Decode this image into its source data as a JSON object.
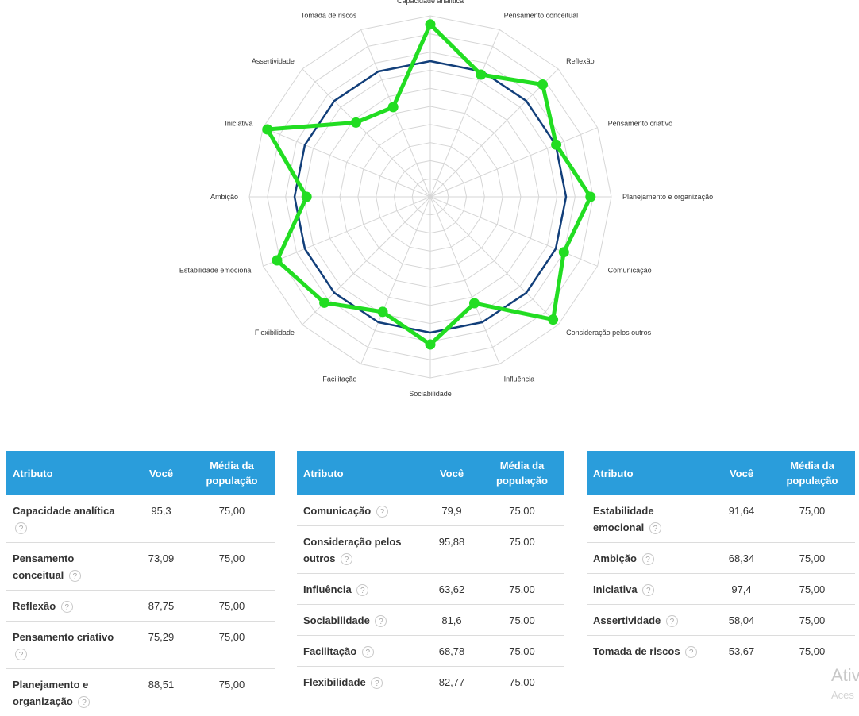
{
  "chart_data": {
    "type": "radar",
    "categories": [
      "Capacidade analítica",
      "Pensamento conceitual",
      "Reflexão",
      "Pensamento criativo",
      "Planejamento e organização",
      "Comunicação",
      "Consideração pelos outros",
      "Influência",
      "Sociabilidade",
      "Facilitação",
      "Flexibilidade",
      "Estabilidade emocional",
      "Ambição",
      "Iniciativa",
      "Assertividade",
      "Tomada de riscos"
    ],
    "series": [
      {
        "name": "Você",
        "color": "#22dd22",
        "values": [
          95.3,
          73.09,
          87.75,
          75.29,
          88.51,
          79.9,
          95.88,
          63.62,
          81.6,
          68.78,
          82.77,
          91.64,
          68.34,
          97.4,
          58.04,
          53.67
        ]
      },
      {
        "name": "Média da população",
        "color": "#123f7a",
        "values": [
          75,
          75,
          75,
          75,
          75,
          75,
          75,
          75,
          75,
          75,
          75,
          75,
          75,
          75,
          75,
          75
        ]
      }
    ],
    "rlim": [
      0,
      100
    ],
    "grid": true
  },
  "tables": [
    {
      "headers": {
        "attr": "Atributo",
        "you": "Você",
        "avg": "Média da população"
      },
      "rows": [
        {
          "attr": "Capacidade analítica",
          "you": "95,3",
          "avg": "75,00"
        },
        {
          "attr": "Pensamento conceitual",
          "you": "73,09",
          "avg": "75,00"
        },
        {
          "attr": "Reflexão",
          "you": "87,75",
          "avg": "75,00"
        },
        {
          "attr": "Pensamento criativo",
          "you": "75,29",
          "avg": "75,00"
        },
        {
          "attr": "Planejamento e organização",
          "you": "88,51",
          "avg": "75,00"
        }
      ]
    },
    {
      "headers": {
        "attr": "Atributo",
        "you": "Você",
        "avg": "Média da população"
      },
      "rows": [
        {
          "attr": "Comunicação",
          "you": "79,9",
          "avg": "75,00"
        },
        {
          "attr": "Consideração pelos outros",
          "you": "95,88",
          "avg": "75,00"
        },
        {
          "attr": "Influência",
          "you": "63,62",
          "avg": "75,00"
        },
        {
          "attr": "Sociabilidade",
          "you": "81,6",
          "avg": "75,00"
        },
        {
          "attr": "Facilitação",
          "you": "68,78",
          "avg": "75,00"
        },
        {
          "attr": "Flexibilidade",
          "you": "82,77",
          "avg": "75,00"
        }
      ]
    },
    {
      "headers": {
        "attr": "Atributo",
        "you": "Você",
        "avg": "Média da população"
      },
      "rows": [
        {
          "attr": "Estabilidade emocional",
          "you": "91,64",
          "avg": "75,00"
        },
        {
          "attr": "Ambição",
          "you": "68,34",
          "avg": "75,00"
        },
        {
          "attr": "Iniciativa",
          "you": "97,4",
          "avg": "75,00"
        },
        {
          "attr": "Assertividade",
          "you": "58,04",
          "avg": "75,00"
        },
        {
          "attr": "Tomada de riscos",
          "you": "53,67",
          "avg": "75,00"
        }
      ]
    }
  ],
  "help_glyph": "?",
  "watermark": {
    "line1": "Ativ",
    "line2": "Aces"
  }
}
